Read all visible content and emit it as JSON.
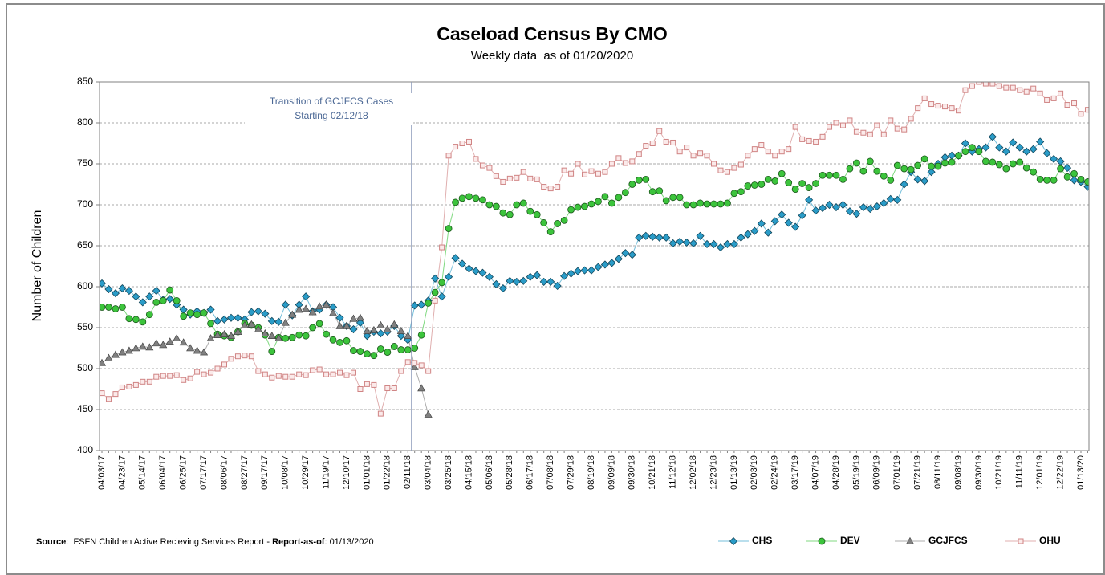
{
  "chart_data": {
    "type": "line",
    "title": "Caseload Census By CMO",
    "subtitle": "Weekly data  as of 01/20/2020",
    "y_label": "Number of Children",
    "annotation": [
      "Transition of GCJFCS Cases",
      "Starting 02/12/18"
    ],
    "footer": [
      "Source",
      ":  FSFN Children Active Recieving Services Report - ",
      "Report-as-of",
      ": 01/13/2020"
    ],
    "ylim": [
      400,
      850
    ],
    "yticks": [
      400,
      450,
      500,
      550,
      600,
      650,
      700,
      750,
      800,
      850
    ],
    "grid": true,
    "legend": "bottom-right",
    "categories": [
      "04/03/17",
      null,
      null,
      "04/23/17",
      null,
      null,
      "05/14/17",
      null,
      null,
      "06/04/17",
      null,
      null,
      "06/25/17",
      null,
      null,
      "07/17/17",
      null,
      null,
      "08/06/17",
      null,
      null,
      "08/27/17",
      null,
      null,
      "09/17/17",
      null,
      null,
      "10/08/17",
      null,
      null,
      "10/29/17",
      null,
      null,
      "11/19/17",
      null,
      null,
      "12/10/17",
      null,
      null,
      "01/01/18",
      null,
      null,
      "01/22/18",
      null,
      null,
      "02/11/18",
      null,
      null,
      "03/04/18",
      null,
      null,
      "03/25/18",
      null,
      null,
      "04/15/18",
      null,
      null,
      "05/06/18",
      null,
      null,
      "05/28/18",
      null,
      null,
      "06/17/18",
      null,
      null,
      "07/08/18",
      null,
      null,
      "07/29/18",
      null,
      null,
      "08/19/18",
      null,
      null,
      "09/09/18",
      null,
      null,
      "09/30/18",
      null,
      null,
      "10/21/18",
      null,
      null,
      "11/12/18",
      null,
      null,
      "12/02/18",
      null,
      null,
      "12/23/18",
      null,
      null,
      "01/13/19",
      null,
      null,
      "02/03/19",
      null,
      null,
      "02/24/19",
      null,
      null,
      "03/17/19",
      null,
      null,
      "04/07/19",
      null,
      null,
      "04/28/19",
      null,
      null,
      "05/19/19",
      null,
      null,
      "06/09/19",
      null,
      null,
      "07/01/19",
      null,
      null,
      "07/21/19",
      null,
      null,
      "08/11/19",
      null,
      null,
      "09/08/19",
      null,
      null,
      "09/30/19",
      null,
      null,
      "10/21/19",
      null,
      null,
      "11/11/19",
      null,
      null,
      "12/01/19",
      null,
      null,
      "12/22/19",
      null,
      null,
      "01/13/20",
      null
    ],
    "series": [
      {
        "name": "CHS",
        "color": "#2a9cc8",
        "marker": "diamond",
        "values": [
          604,
          597,
          592,
          598,
          595,
          588,
          581,
          588,
          595,
          584,
          585,
          578,
          572,
          566,
          570,
          568,
          572,
          558,
          560,
          562,
          562,
          560,
          569,
          570,
          567,
          558,
          557,
          578,
          565,
          578,
          588,
          570,
          572,
          578,
          575,
          562,
          552,
          548,
          556,
          540,
          545,
          543,
          545,
          552,
          540,
          535,
          577,
          578,
          583,
          610,
          588,
          612,
          635,
          628,
          622,
          619,
          617,
          612,
          603,
          598,
          607,
          606,
          607,
          612,
          614,
          606,
          606,
          601,
          613,
          616,
          619,
          620,
          620,
          624,
          627,
          629,
          634,
          641,
          639,
          660,
          662,
          661,
          660,
          660,
          653,
          655,
          654,
          653,
          662,
          652,
          652,
          648,
          652,
          652,
          660,
          664,
          668,
          677,
          666,
          680,
          688,
          678,
          673,
          687,
          706,
          693,
          696,
          700,
          697,
          700,
          692,
          689,
          697,
          695,
          698,
          702,
          707,
          706,
          725,
          740,
          731,
          729,
          740,
          750,
          758,
          760,
          760,
          775,
          765,
          768,
          770,
          783,
          770,
          765,
          776,
          770,
          765,
          768,
          777,
          763,
          756,
          753,
          745,
          730,
          728,
          722
        ]
      },
      {
        "name": "DEV",
        "color": "#3cc43c",
        "marker": "circle",
        "values": [
          575,
          575,
          573,
          575,
          561,
          560,
          557,
          566,
          581,
          583,
          596,
          583,
          564,
          568,
          566,
          568,
          555,
          542,
          540,
          538,
          545,
          555,
          553,
          550,
          541,
          521,
          538,
          537,
          538,
          541,
          540,
          550,
          555,
          542,
          535,
          532,
          534,
          522,
          521,
          518,
          516,
          524,
          520,
          527,
          523,
          523,
          525,
          541,
          580,
          593,
          605,
          671,
          703,
          708,
          710,
          708,
          706,
          700,
          698,
          690,
          688,
          700,
          702,
          692,
          688,
          678,
          667,
          677,
          681,
          694,
          697,
          698,
          701,
          704,
          710,
          702,
          709,
          715,
          725,
          730,
          731,
          716,
          717,
          705,
          709,
          709,
          700,
          700,
          702,
          701,
          701,
          701,
          702,
          714,
          716,
          723,
          724,
          725,
          731,
          729,
          738,
          727,
          719,
          726,
          721,
          726,
          736,
          736,
          736,
          731,
          744,
          751,
          741,
          753,
          741,
          735,
          730,
          748,
          744,
          743,
          748,
          756,
          747,
          747,
          751,
          752,
          760,
          765,
          770,
          765,
          753,
          752,
          749,
          744,
          750,
          752,
          745,
          740,
          731,
          730,
          730,
          744,
          734,
          738,
          731,
          728
        ]
      },
      {
        "name": "GCJFCS",
        "color": "#808080",
        "marker": "triangle",
        "values": [
          507,
          513,
          517,
          520,
          522,
          525,
          527,
          526,
          531,
          529,
          533,
          537,
          532,
          525,
          522,
          520,
          537,
          541,
          542,
          540,
          545,
          553,
          554,
          548,
          543,
          540,
          537,
          556,
          566,
          572,
          573,
          569,
          576,
          578,
          568,
          552,
          552,
          561,
          562,
          546,
          547,
          553,
          548,
          554,
          546,
          540,
          502,
          476,
          444,
          null,
          null,
          null,
          null,
          null,
          null,
          null,
          null,
          null,
          null,
          null,
          null,
          null,
          null,
          null,
          null,
          null,
          null,
          null,
          null,
          null,
          null,
          null,
          null,
          null,
          null,
          null,
          null,
          null,
          null,
          null,
          null,
          null,
          null,
          null,
          null,
          null,
          null,
          null,
          null,
          null,
          null,
          null,
          null,
          null,
          null,
          null,
          null,
          null,
          null,
          null,
          null,
          null,
          null,
          null,
          null,
          null,
          null,
          null,
          null,
          null,
          null,
          null,
          null,
          null,
          null,
          null,
          null,
          null,
          null,
          null,
          null,
          null,
          null,
          null,
          null,
          null,
          null,
          null,
          null,
          null,
          null,
          null,
          null,
          null,
          null,
          null,
          null,
          null,
          null,
          null,
          null,
          null,
          null,
          null,
          null,
          null
        ]
      },
      {
        "name": "OHU",
        "color": "#d08484",
        "marker": "square",
        "values": [
          470,
          463,
          469,
          477,
          478,
          480,
          484,
          484,
          490,
          491,
          491,
          492,
          486,
          488,
          496,
          493,
          495,
          500,
          505,
          512,
          515,
          516,
          515,
          497,
          493,
          489,
          491,
          490,
          490,
          493,
          492,
          498,
          499,
          493,
          493,
          495,
          492,
          495,
          475,
          481,
          480,
          445,
          476,
          476,
          497,
          508,
          507,
          504,
          497,
          583,
          648,
          760,
          771,
          775,
          777,
          756,
          748,
          745,
          735,
          728,
          732,
          733,
          740,
          732,
          731,
          722,
          720,
          722,
          742,
          738,
          750,
          737,
          741,
          738,
          740,
          750,
          757,
          751,
          753,
          762,
          772,
          775,
          790,
          777,
          776,
          765,
          770,
          760,
          763,
          760,
          750,
          742,
          740,
          745,
          749,
          760,
          768,
          773,
          765,
          760,
          765,
          768,
          795,
          780,
          778,
          777,
          783,
          795,
          800,
          797,
          803,
          789,
          788,
          786,
          797,
          786,
          803,
          793,
          792,
          805,
          818,
          830,
          823,
          821,
          820,
          818,
          815,
          840,
          845,
          850,
          848,
          848,
          845,
          843,
          843,
          840,
          838,
          842,
          836,
          828,
          830,
          836,
          822,
          824,
          811,
          816
        ]
      }
    ]
  }
}
